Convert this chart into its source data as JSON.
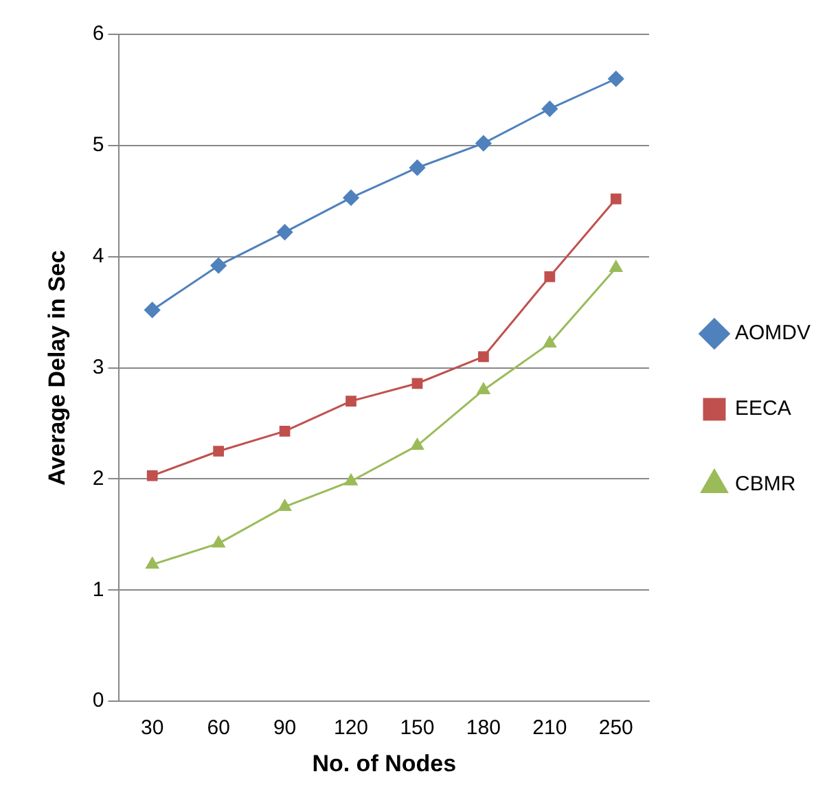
{
  "chart_data": {
    "type": "line",
    "xlabel": "No. of Nodes",
    "ylabel": "Average Delay in Sec",
    "categories": [
      "30",
      "60",
      "90",
      "120",
      "150",
      "180",
      "210",
      "250"
    ],
    "ylim": [
      0,
      6
    ],
    "yticks": [
      0,
      1,
      2,
      3,
      4,
      5,
      6
    ],
    "grid": "y",
    "legend": "right",
    "series": [
      {
        "name": "AOMDV",
        "color": "#4f81bd",
        "marker": "diamond",
        "values": [
          3.52,
          3.92,
          4.22,
          4.53,
          4.8,
          5.02,
          5.33,
          5.6
        ]
      },
      {
        "name": "EECA",
        "color": "#c0504d",
        "marker": "square",
        "values": [
          2.03,
          2.25,
          2.43,
          2.7,
          2.86,
          3.1,
          3.82,
          4.52
        ]
      },
      {
        "name": "CBMR",
        "color": "#9bbb59",
        "marker": "triangle",
        "values": [
          1.23,
          1.42,
          1.75,
          1.98,
          2.3,
          2.8,
          3.22,
          3.9
        ]
      }
    ]
  }
}
